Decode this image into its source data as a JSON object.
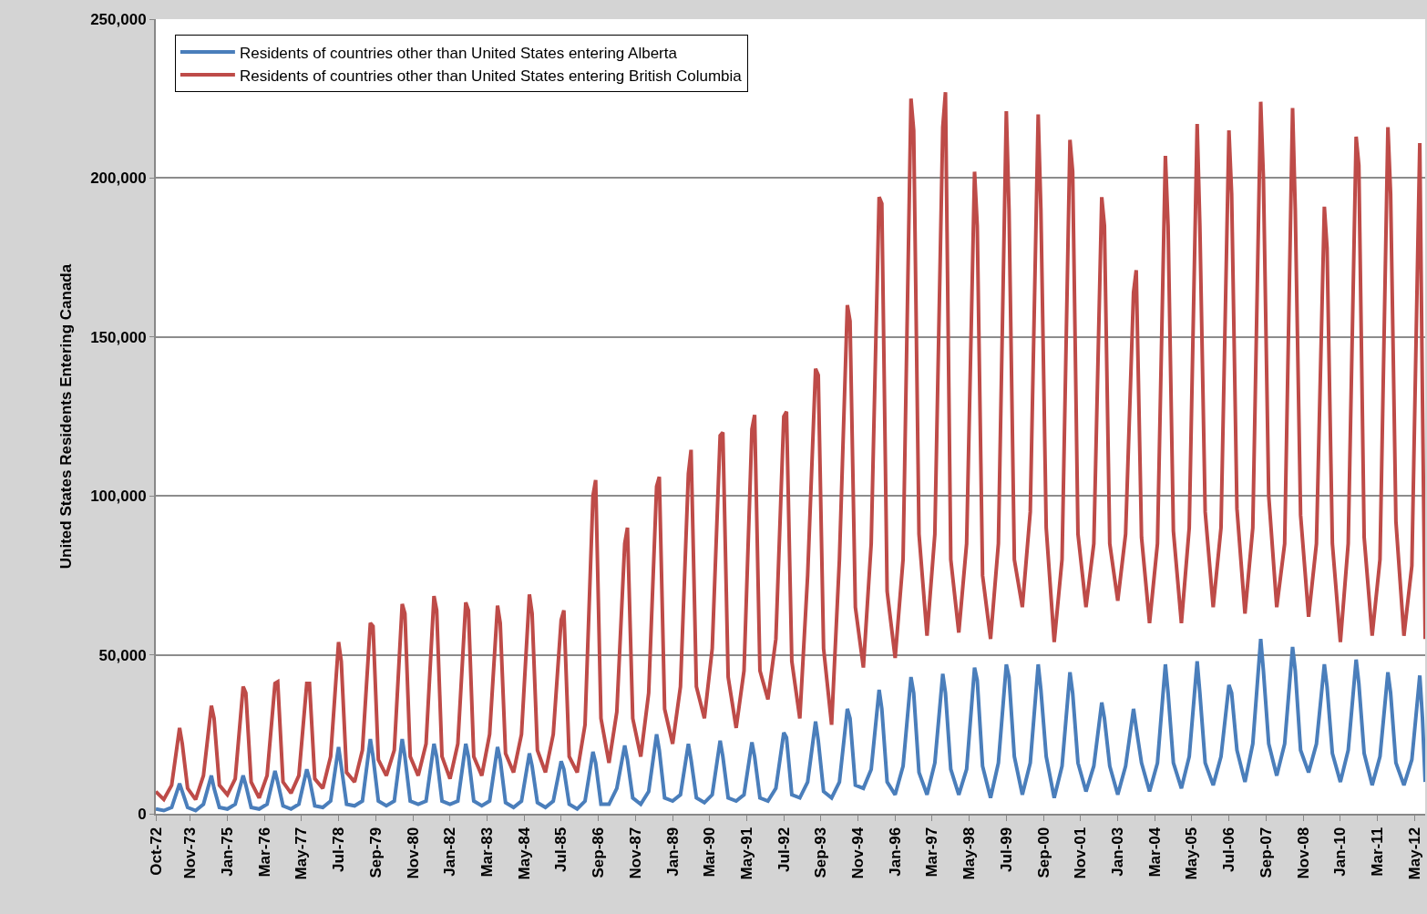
{
  "chart_data": {
    "type": "line",
    "ylabel": "United States Residents Entering Canada",
    "x": [
      "1972-10",
      "1973-01",
      "1973-04",
      "1973-07",
      "1973-08",
      "1973-10",
      "1974-01",
      "1974-04",
      "1974-07",
      "1974-08",
      "1974-10",
      "1975-01",
      "1975-04",
      "1975-07",
      "1975-08",
      "1975-10",
      "1976-01",
      "1976-04",
      "1976-07",
      "1976-08",
      "1976-10",
      "1977-01",
      "1977-04",
      "1977-07",
      "1977-08",
      "1977-10",
      "1978-01",
      "1978-04",
      "1978-07",
      "1978-08",
      "1978-10",
      "1979-01",
      "1979-04",
      "1979-07",
      "1979-08",
      "1979-10",
      "1980-01",
      "1980-04",
      "1980-07",
      "1980-08",
      "1980-10",
      "1981-01",
      "1981-04",
      "1981-07",
      "1981-08",
      "1981-10",
      "1982-01",
      "1982-04",
      "1982-07",
      "1982-08",
      "1982-10",
      "1983-01",
      "1983-04",
      "1983-07",
      "1983-08",
      "1983-10",
      "1984-01",
      "1984-04",
      "1984-07",
      "1984-08",
      "1984-10",
      "1985-01",
      "1985-04",
      "1985-07",
      "1985-08",
      "1985-10",
      "1986-01",
      "1986-04",
      "1986-07",
      "1986-08",
      "1986-10",
      "1987-01",
      "1987-04",
      "1987-07",
      "1987-08",
      "1987-10",
      "1988-01",
      "1988-04",
      "1988-07",
      "1988-08",
      "1988-10",
      "1989-01",
      "1989-04",
      "1989-07",
      "1989-08",
      "1989-10",
      "1990-01",
      "1990-04",
      "1990-07",
      "1990-08",
      "1990-10",
      "1991-01",
      "1991-04",
      "1991-07",
      "1991-08",
      "1991-10",
      "1992-01",
      "1992-04",
      "1992-07",
      "1992-08",
      "1992-10",
      "1993-01",
      "1993-04",
      "1993-07",
      "1993-08",
      "1993-10",
      "1994-01",
      "1994-04",
      "1994-07",
      "1994-08",
      "1994-10",
      "1995-01",
      "1995-04",
      "1995-07",
      "1995-08",
      "1995-10",
      "1996-01",
      "1996-04",
      "1996-07",
      "1996-08",
      "1996-10",
      "1997-01",
      "1997-04",
      "1997-07",
      "1997-08",
      "1997-10",
      "1998-01",
      "1998-04",
      "1998-07",
      "1998-08",
      "1998-10",
      "1999-01",
      "1999-04",
      "1999-07",
      "1999-08",
      "1999-10",
      "2000-01",
      "2000-04",
      "2000-07",
      "2000-08",
      "2000-10",
      "2001-01",
      "2001-04",
      "2001-07",
      "2001-08",
      "2001-10",
      "2002-01",
      "2002-04",
      "2002-07",
      "2002-08",
      "2002-10",
      "2003-01",
      "2003-04",
      "2003-07",
      "2003-08",
      "2003-10",
      "2004-01",
      "2004-04",
      "2004-07",
      "2004-08",
      "2004-10",
      "2005-01",
      "2005-04",
      "2005-07",
      "2005-08",
      "2005-10",
      "2006-01",
      "2006-04",
      "2006-07",
      "2006-08",
      "2006-10",
      "2007-01",
      "2007-04",
      "2007-07",
      "2007-08",
      "2007-10",
      "2008-01",
      "2008-04",
      "2008-07",
      "2008-08",
      "2008-10",
      "2009-01",
      "2009-04",
      "2009-07",
      "2009-08",
      "2009-10",
      "2010-01",
      "2010-04",
      "2010-07",
      "2010-08",
      "2010-10",
      "2011-01",
      "2011-04",
      "2011-07",
      "2011-08",
      "2011-10",
      "2012-01",
      "2012-04",
      "2012-07",
      "2012-08",
      "2012-09"
    ],
    "series": [
      {
        "name": "Residents of countries other than United States entering Alberta",
        "color": "#4a7ebb",
        "values": [
          1500,
          1000,
          2000,
          9500,
          7000,
          2000,
          1000,
          3000,
          12000,
          8000,
          2000,
          1500,
          3000,
          12000,
          9000,
          2000,
          1500,
          3000,
          13500,
          10000,
          2500,
          1500,
          3000,
          14000,
          11000,
          2500,
          2000,
          4000,
          21000,
          15000,
          3000,
          2500,
          4000,
          23500,
          18000,
          4000,
          2500,
          4000,
          23500,
          18000,
          4000,
          3000,
          4000,
          22000,
          18000,
          4000,
          3000,
          4000,
          22000,
          18000,
          4000,
          2500,
          4000,
          21000,
          17000,
          3500,
          2000,
          4000,
          19000,
          15000,
          3500,
          2000,
          4000,
          16500,
          14000,
          3000,
          1500,
          4000,
          19500,
          16000,
          3000,
          3000,
          8000,
          21500,
          17000,
          5000,
          3000,
          7000,
          25000,
          20000,
          5000,
          4000,
          6000,
          22000,
          17000,
          5000,
          3500,
          6000,
          23000,
          18000,
          5000,
          4000,
          6000,
          22500,
          18000,
          5000,
          4000,
          8000,
          25500,
          24000,
          6000,
          5000,
          10000,
          29000,
          23000,
          7000,
          5000,
          10000,
          33000,
          30000,
          9000,
          8000,
          14000,
          39000,
          33000,
          10000,
          6000,
          15000,
          43000,
          38000,
          13000,
          6000,
          16000,
          44000,
          38000,
          14000,
          6000,
          14000,
          46000,
          42000,
          15000,
          5000,
          16000,
          47000,
          43000,
          18000,
          6000,
          16000,
          47000,
          39000,
          18000,
          5000,
          15000,
          44500,
          38000,
          16000,
          7000,
          15000,
          35000,
          30000,
          15000,
          6000,
          15000,
          33000,
          27000,
          16000,
          7000,
          16000,
          47000,
          38000,
          16000,
          8000,
          18000,
          48000,
          38000,
          16000,
          9000,
          18000,
          40500,
          38000,
          20000,
          10000,
          22000,
          55000,
          45000,
          22000,
          12000,
          22000,
          52500,
          45000,
          20000,
          13000,
          22000,
          47000,
          40000,
          19000,
          10000,
          20000,
          48500,
          41000,
          19000,
          9000,
          18000,
          44500,
          38000,
          16000,
          9000,
          17000,
          43500,
          30000,
          10000
        ]
      },
      {
        "name": "Residents of countries other than United States entering British Columbia",
        "color": "#be4b48",
        "values": [
          7000,
          4500,
          9000,
          27000,
          22000,
          8000,
          4500,
          12000,
          34000,
          30000,
          9000,
          6000,
          11000,
          40000,
          38000,
          10000,
          5000,
          12000,
          41000,
          41500,
          10000,
          6500,
          12000,
          41000,
          41000,
          11000,
          8000,
          18000,
          54000,
          48000,
          13000,
          10000,
          20000,
          60000,
          59000,
          17000,
          12000,
          20000,
          66000,
          63000,
          18000,
          12000,
          22000,
          68500,
          64000,
          18000,
          11000,
          22000,
          66500,
          64000,
          18000,
          12000,
          25000,
          65500,
          60000,
          19000,
          13000,
          25000,
          69000,
          63000,
          20000,
          13000,
          25000,
          61000,
          64000,
          18000,
          13000,
          28000,
          100000,
          105000,
          30000,
          16000,
          32000,
          85000,
          90000,
          30000,
          18000,
          38000,
          103000,
          106000,
          33000,
          22000,
          40000,
          107000,
          114500,
          40000,
          30000,
          52000,
          119000,
          120000,
          43000,
          27000,
          45000,
          121000,
          125500,
          45000,
          36000,
          55000,
          125000,
          126500,
          48000,
          30000,
          75000,
          140000,
          138000,
          52000,
          28000,
          80000,
          160000,
          155000,
          65000,
          46000,
          85000,
          194000,
          192000,
          70000,
          49000,
          80000,
          225000,
          215000,
          88000,
          56000,
          88000,
          216000,
          227000,
          80000,
          57000,
          85000,
          202000,
          185000,
          75000,
          55000,
          85000,
          221000,
          190000,
          80000,
          65000,
          95000,
          220000,
          190000,
          90000,
          54000,
          80000,
          212000,
          202000,
          88000,
          65000,
          85000,
          194000,
          185000,
          85000,
          67000,
          88000,
          164000,
          171000,
          87000,
          60000,
          85000,
          207000,
          185000,
          89000,
          60000,
          90000,
          217000,
          185000,
          95000,
          65000,
          90000,
          215000,
          195000,
          96000,
          63000,
          90000,
          224000,
          200000,
          100000,
          65000,
          85000,
          222000,
          190000,
          94000,
          62000,
          85000,
          191000,
          178000,
          85000,
          54000,
          85000,
          213000,
          204000,
          87000,
          56000,
          80000,
          216000,
          195000,
          92000,
          56000,
          78000,
          211000,
          130000,
          55000
        ]
      }
    ],
    "xlim": [
      "1972-10",
      "2012-09"
    ],
    "xticks": [
      {
        "value": "1972-10",
        "label": "Oct-72"
      },
      {
        "value": "1973-11",
        "label": "Nov-73"
      },
      {
        "value": "1975-01",
        "label": "Jan-75"
      },
      {
        "value": "1976-03",
        "label": "Mar-76"
      },
      {
        "value": "1977-05",
        "label": "May-77"
      },
      {
        "value": "1978-07",
        "label": "Jul-78"
      },
      {
        "value": "1979-09",
        "label": "Sep-79"
      },
      {
        "value": "1980-11",
        "label": "Nov-80"
      },
      {
        "value": "1982-01",
        "label": "Jan-82"
      },
      {
        "value": "1983-03",
        "label": "Mar-83"
      },
      {
        "value": "1984-05",
        "label": "May-84"
      },
      {
        "value": "1985-07",
        "label": "Jul-85"
      },
      {
        "value": "1986-09",
        "label": "Sep-86"
      },
      {
        "value": "1987-11",
        "label": "Nov-87"
      },
      {
        "value": "1989-01",
        "label": "Jan-89"
      },
      {
        "value": "1990-03",
        "label": "Mar-90"
      },
      {
        "value": "1991-05",
        "label": "May-91"
      },
      {
        "value": "1992-07",
        "label": "Jul-92"
      },
      {
        "value": "1993-09",
        "label": "Sep-93"
      },
      {
        "value": "1994-11",
        "label": "Nov-94"
      },
      {
        "value": "1996-01",
        "label": "Jan-96"
      },
      {
        "value": "1997-03",
        "label": "Mar-97"
      },
      {
        "value": "1998-05",
        "label": "May-98"
      },
      {
        "value": "1999-07",
        "label": "Jul-99"
      },
      {
        "value": "2000-09",
        "label": "Sep-00"
      },
      {
        "value": "2001-11",
        "label": "Nov-01"
      },
      {
        "value": "2003-01",
        "label": "Jan-03"
      },
      {
        "value": "2004-03",
        "label": "Mar-04"
      },
      {
        "value": "2005-05",
        "label": "May-05"
      },
      {
        "value": "2006-07",
        "label": "Jul-06"
      },
      {
        "value": "2007-09",
        "label": "Sep-07"
      },
      {
        "value": "2008-11",
        "label": "Nov-08"
      },
      {
        "value": "2010-01",
        "label": "Jan-10"
      },
      {
        "value": "2011-03",
        "label": "Mar-11"
      },
      {
        "value": "2012-05",
        "label": "May-12"
      }
    ],
    "ylim": [
      0,
      250000
    ],
    "yticks": [
      0,
      {
        "value": 50000,
        "label": "50,000"
      },
      {
        "value": 100000,
        "label": "100,000"
      },
      {
        "value": 150000,
        "label": "150,000"
      },
      {
        "value": 200000,
        "label": "200,000"
      },
      {
        "value": 250000,
        "label": "250,000"
      }
    ],
    "grid": "y",
    "legend": "top left",
    "marker": "none",
    "line_style": "solid"
  }
}
